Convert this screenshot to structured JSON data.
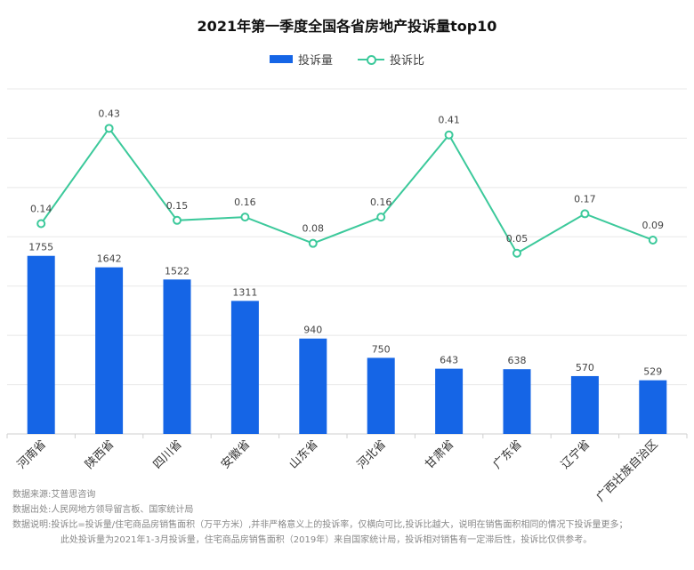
{
  "title": "2021年第一季度全国各省房地产投诉量top10",
  "legend": {
    "bar": "投诉量",
    "line": "投诉比"
  },
  "colors": {
    "bar": "#1565e6",
    "line": "#3cc99b",
    "grid": "#e8e8e8",
    "axis": "#cfcfcf"
  },
  "chart_data": {
    "type": "bar",
    "title": "2021年第一季度全国各省房地产投诉量top10",
    "categories": [
      "河南省",
      "陕西省",
      "四川省",
      "安徽省",
      "山东省",
      "河北省",
      "甘肃省",
      "广东省",
      "辽宁省",
      "广西壮族自治区"
    ],
    "series": [
      {
        "name": "投诉量",
        "type": "bar",
        "values": [
          1755,
          1642,
          1522,
          1311,
          940,
          750,
          643,
          638,
          570,
          529
        ]
      },
      {
        "name": "投诉比",
        "type": "line",
        "values": [
          0.14,
          0.43,
          0.15,
          0.16,
          0.08,
          0.16,
          0.41,
          0.05,
          0.17,
          0.09
        ]
      }
    ],
    "bar_axis_range": [
      0,
      3400
    ],
    "line_axis_range": [
      -0.5,
      0.55
    ],
    "grid": true,
    "legend_position": "top-center"
  },
  "notes": {
    "source_label": "数据来源:",
    "source": "艾普思咨询",
    "origin_label": "数据出处:",
    "origin": "人民网地方领导留言板、国家统计局",
    "desc_label": "数据说明:",
    "desc_line1": "投诉比=投诉量/住宅商品房销售面积（万平方米）,并非严格意义上的投诉率，仅横向可比,投诉比越大，说明在销售面积相同的情况下投诉量更多；",
    "desc_line2": "此处投诉量为2021年1-3月投诉量，住宅商品房销售面积（2019年）来自国家统计局，投诉相对销售有一定滞后性，投诉比仅供参考。"
  }
}
